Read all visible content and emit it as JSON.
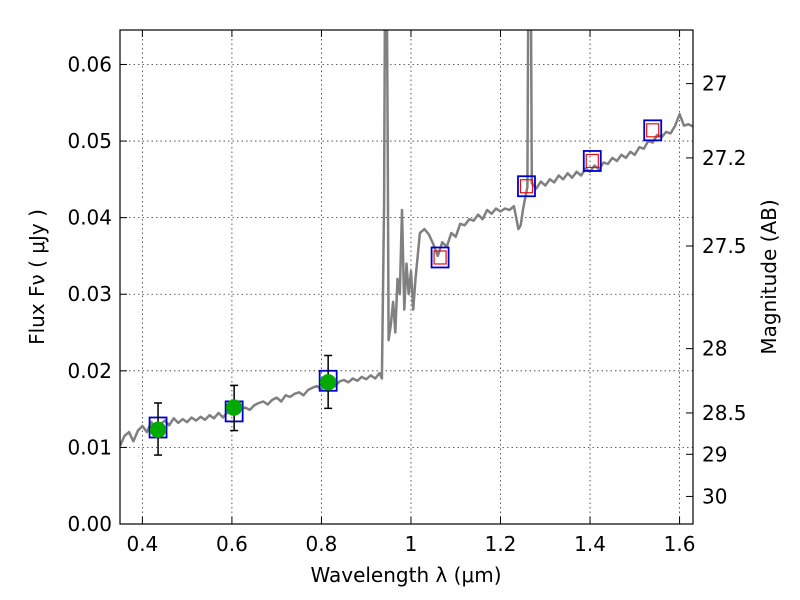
{
  "chart_data": {
    "type": "line",
    "xlabel": "Wavelength  λ (μm)",
    "ylabel": "Flux  Fν  ( μJy )",
    "y2label": "Magnitude (AB)",
    "xlim": [
      0.35,
      1.63
    ],
    "ylim": [
      0.0,
      0.0645
    ],
    "grid": true,
    "x_ticks": [
      0.4,
      0.6,
      0.8,
      1.0,
      1.2,
      1.4,
      1.6
    ],
    "x_tick_labels": [
      "0.4",
      "0.6",
      "0.8",
      "1",
      "1.2",
      "1.4",
      "1.6"
    ],
    "y_ticks": [
      0.0,
      0.01,
      0.02,
      0.03,
      0.04,
      0.05,
      0.06
    ],
    "y_tick_labels": [
      "0.00",
      "0.01",
      "0.02",
      "0.03",
      "0.04",
      "0.05",
      "0.06"
    ],
    "y2_ticks": [
      {
        "label": "27",
        "flux": 0.0575
      },
      {
        "label": "27.2",
        "flux": 0.0478
      },
      {
        "label": "27.5",
        "flux": 0.0363
      },
      {
        "label": "28",
        "flux": 0.0229
      },
      {
        "label": "28.5",
        "flux": 0.0145
      },
      {
        "label": "29",
        "flux": 0.0091
      },
      {
        "label": "30",
        "flux": 0.0036
      }
    ],
    "colors": {
      "spectrum": "#808080",
      "observed": "#00aa00",
      "model_box": "#0000cc",
      "model_inner": "#dd1111",
      "errorbar": "#000000"
    },
    "series": [
      {
        "name": "spectrum",
        "x": [
          0.35,
          0.36,
          0.37,
          0.38,
          0.39,
          0.4,
          0.41,
          0.42,
          0.43,
          0.44,
          0.45,
          0.46,
          0.47,
          0.48,
          0.49,
          0.5,
          0.51,
          0.52,
          0.53,
          0.54,
          0.55,
          0.56,
          0.57,
          0.58,
          0.59,
          0.6,
          0.61,
          0.62,
          0.63,
          0.64,
          0.65,
          0.66,
          0.67,
          0.68,
          0.69,
          0.7,
          0.71,
          0.72,
          0.73,
          0.74,
          0.75,
          0.76,
          0.77,
          0.78,
          0.79,
          0.8,
          0.81,
          0.82,
          0.83,
          0.84,
          0.85,
          0.86,
          0.87,
          0.88,
          0.89,
          0.9,
          0.91,
          0.92,
          0.93,
          0.935,
          0.94,
          0.942,
          0.944,
          0.946,
          0.948,
          0.95,
          0.955,
          0.96,
          0.965,
          0.97,
          0.975,
          0.98,
          0.985,
          0.99,
          0.995,
          1.0,
          1.005,
          1.01,
          1.02,
          1.03,
          1.04,
          1.05,
          1.06,
          1.07,
          1.08,
          1.09,
          1.1,
          1.11,
          1.12,
          1.13,
          1.14,
          1.15,
          1.16,
          1.17,
          1.18,
          1.19,
          1.2,
          1.21,
          1.22,
          1.23,
          1.235,
          1.24,
          1.245,
          1.25,
          1.255,
          1.26,
          1.262,
          1.264,
          1.266,
          1.268,
          1.27,
          1.28,
          1.29,
          1.3,
          1.31,
          1.32,
          1.33,
          1.34,
          1.35,
          1.36,
          1.37,
          1.38,
          1.39,
          1.4,
          1.41,
          1.42,
          1.43,
          1.44,
          1.45,
          1.46,
          1.47,
          1.48,
          1.49,
          1.5,
          1.51,
          1.52,
          1.53,
          1.54,
          1.55,
          1.56,
          1.57,
          1.58,
          1.59,
          1.6,
          1.61,
          1.62,
          1.63
        ],
        "y": [
          0.0102,
          0.0115,
          0.012,
          0.0108,
          0.0122,
          0.0128,
          0.012,
          0.0133,
          0.0126,
          0.013,
          0.0135,
          0.0129,
          0.0138,
          0.0132,
          0.0137,
          0.0133,
          0.0139,
          0.0135,
          0.014,
          0.0136,
          0.0142,
          0.0138,
          0.0145,
          0.0139,
          0.0146,
          0.0143,
          0.0148,
          0.015,
          0.0152,
          0.0149,
          0.0155,
          0.0158,
          0.016,
          0.0156,
          0.0162,
          0.0165,
          0.016,
          0.0168,
          0.0166,
          0.017,
          0.0172,
          0.0168,
          0.0175,
          0.0178,
          0.018,
          0.0176,
          0.0182,
          0.0184,
          0.018,
          0.0186,
          0.0188,
          0.0185,
          0.019,
          0.0187,
          0.0192,
          0.0189,
          0.0194,
          0.019,
          0.0197,
          0.019,
          0.042,
          0.07,
          0.07,
          0.07,
          0.05,
          0.024,
          0.026,
          0.029,
          0.025,
          0.032,
          0.03,
          0.041,
          0.028,
          0.034,
          0.03,
          0.033,
          0.028,
          0.032,
          0.038,
          0.0385,
          0.0378,
          0.0365,
          0.035,
          0.0368,
          0.0362,
          0.038,
          0.0375,
          0.0392,
          0.039,
          0.0398,
          0.0396,
          0.0404,
          0.0398,
          0.041,
          0.0405,
          0.0412,
          0.0408,
          0.0412,
          0.041,
          0.0415,
          0.04,
          0.0385,
          0.039,
          0.041,
          0.0425,
          0.044,
          0.07,
          0.07,
          0.07,
          0.07,
          0.0445,
          0.0438,
          0.0447,
          0.0442,
          0.045,
          0.0446,
          0.0455,
          0.045,
          0.0458,
          0.0452,
          0.046,
          0.0455,
          0.0464,
          0.046,
          0.0468,
          0.0463,
          0.0472,
          0.047,
          0.0478,
          0.0474,
          0.0482,
          0.0478,
          0.0486,
          0.0482,
          0.0492,
          0.049,
          0.05,
          0.0498,
          0.0508,
          0.0505,
          0.0512,
          0.051,
          0.052,
          0.0535,
          0.052,
          0.0522,
          0.0519
        ]
      },
      {
        "name": "observed",
        "points": [
          {
            "x": 0.435,
            "y": 0.0123,
            "err_low": 0.009,
            "err_high": 0.0158
          },
          {
            "x": 0.605,
            "y": 0.0152,
            "err_low": 0.0122,
            "err_high": 0.0181
          },
          {
            "x": 0.815,
            "y": 0.0185,
            "err_low": 0.0151,
            "err_high": 0.022
          }
        ]
      },
      {
        "name": "model_box",
        "points": [
          {
            "x": 0.435,
            "y": 0.0126,
            "inner": false
          },
          {
            "x": 0.605,
            "y": 0.0147,
            "inner": false
          },
          {
            "x": 0.815,
            "y": 0.0187,
            "inner": false
          },
          {
            "x": 1.065,
            "y": 0.0348,
            "inner": true
          },
          {
            "x": 1.258,
            "y": 0.0441,
            "inner": true
          },
          {
            "x": 1.405,
            "y": 0.0474,
            "inner": true
          },
          {
            "x": 1.54,
            "y": 0.0514,
            "inner": true
          }
        ]
      }
    ]
  }
}
